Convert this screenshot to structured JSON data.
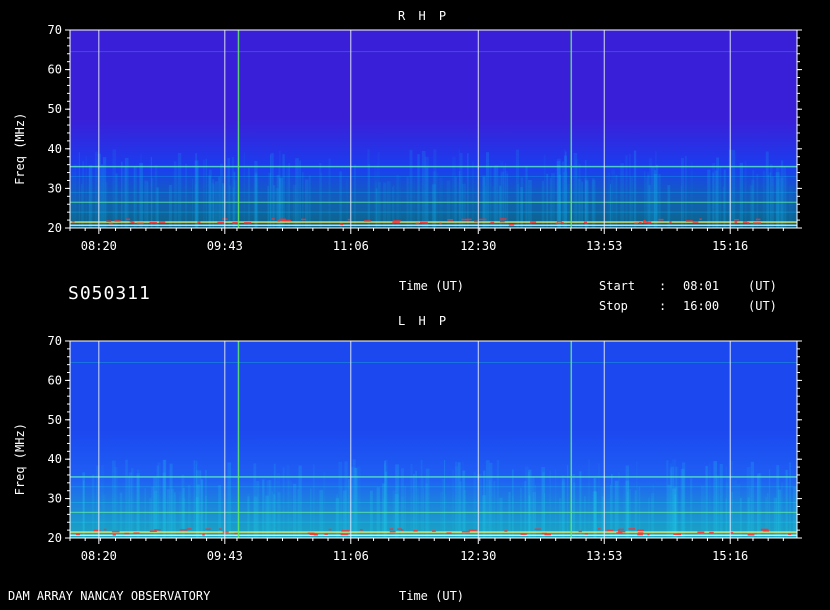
{
  "observation": {
    "id": "S050311",
    "start_label": "Start",
    "start_sep": ":",
    "start_time": "08:01",
    "start_unit": "(UT)",
    "stop_label": "Stop",
    "stop_sep": ":",
    "stop_time": "16:00",
    "stop_unit": "(UT)",
    "footer": "DAM ARRAY  NANCAY OBSERVATORY"
  },
  "chart_data": [
    {
      "type": "heatmap",
      "title": "R H P",
      "xlabel": "Time (UT)",
      "ylabel": "Freq (MHz)",
      "xlim": [
        "08:01",
        "16:00"
      ],
      "ylim": [
        20,
        70
      ],
      "x_ticks": [
        "08:20",
        "09:43",
        "11:06",
        "12:30",
        "13:53",
        "15:16"
      ],
      "y_ticks": [
        20,
        30,
        40,
        50,
        60,
        70
      ],
      "colors": {
        "background": "#3a1fd8",
        "low": "#1a3ef0",
        "mid": "#14b4f0",
        "high": "#ffffff"
      }
    },
    {
      "type": "heatmap",
      "title": "L H P",
      "xlabel": "Time (UT)",
      "ylabel": "Freq (MHz)",
      "xlim": [
        "08:01",
        "16:00"
      ],
      "ylim": [
        20,
        70
      ],
      "x_ticks": [
        "08:20",
        "09:43",
        "11:06",
        "12:30",
        "13:53",
        "15:16"
      ],
      "y_ticks": [
        20,
        30,
        40,
        50,
        60,
        70
      ],
      "colors": {
        "background": "#1c48f0",
        "low": "#1e60f4",
        "mid": "#20d0ee",
        "high": "#ffffff"
      }
    }
  ]
}
